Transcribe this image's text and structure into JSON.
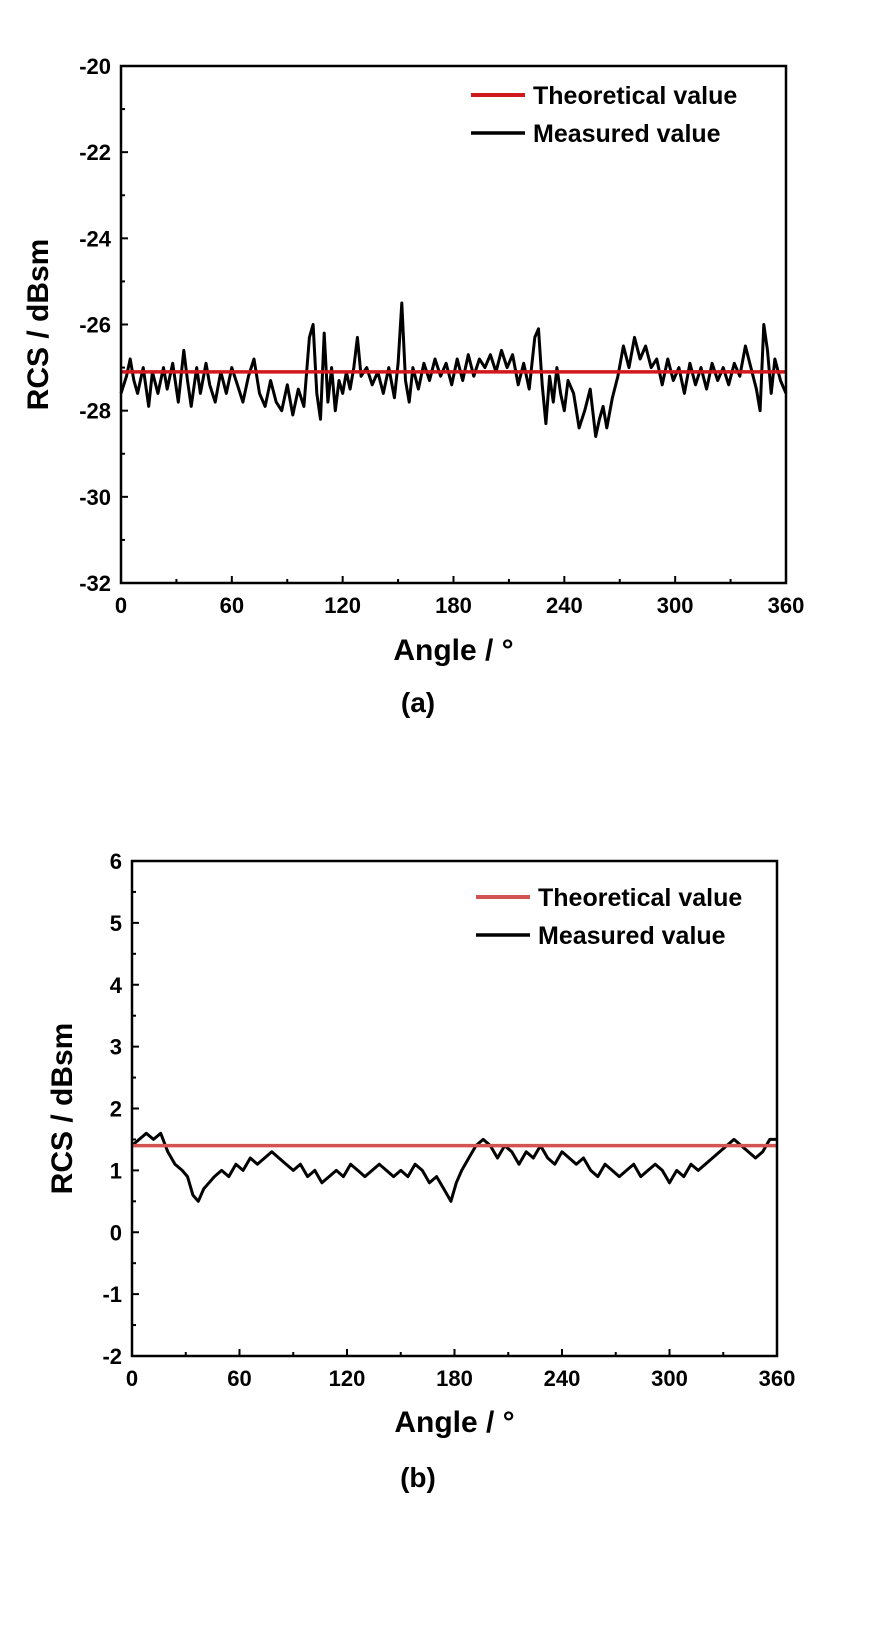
{
  "chart_data": [
    {
      "type": "line",
      "caption": "(a)",
      "xlabel": "Angle / °",
      "ylabel": "RCS / dBsm",
      "xlim": [
        0,
        360
      ],
      "ylim": [
        -32,
        -20
      ],
      "xticks": [
        0,
        60,
        120,
        180,
        240,
        300,
        360
      ],
      "xtick_labels": [
        "0",
        "60",
        "120",
        "180",
        "240",
        "300",
        "360"
      ],
      "yticks": [
        -32,
        -30,
        -28,
        -26,
        -24,
        -22,
        -20
      ],
      "ytick_labels": [
        "-32",
        "-30",
        "-28",
        "-26",
        "-24",
        "-22",
        "-20"
      ],
      "grid": false,
      "legend_position": "top-right",
      "series": [
        {
          "name": "Theoretical value",
          "color": "#d0191f",
          "x": [
            0,
            360
          ],
          "values": [
            -27.1,
            -27.1
          ]
        },
        {
          "name": "Measured value",
          "color": "#000000",
          "x": [
            0,
            3,
            5,
            7,
            9,
            12,
            15,
            17,
            20,
            23,
            25,
            28,
            31,
            34,
            36,
            38,
            41,
            43,
            46,
            48,
            51,
            54,
            57,
            60,
            63,
            66,
            69,
            72,
            75,
            78,
            81,
            84,
            87,
            90,
            93,
            96,
            99,
            102,
            104,
            106,
            108,
            110,
            112,
            114,
            116,
            118,
            120,
            122,
            124,
            126,
            128,
            130,
            133,
            136,
            139,
            142,
            145,
            148,
            150,
            152,
            154,
            156,
            158,
            161,
            164,
            167,
            170,
            173,
            176,
            179,
            182,
            185,
            188,
            191,
            194,
            197,
            200,
            203,
            206,
            209,
            212,
            215,
            218,
            221,
            224,
            226,
            228,
            230,
            232,
            234,
            236,
            238,
            240,
            242,
            245,
            248,
            251,
            254,
            257,
            259,
            261,
            263,
            266,
            269,
            272,
            275,
            278,
            281,
            284,
            287,
            290,
            293,
            296,
            299,
            302,
            305,
            308,
            311,
            314,
            317,
            320,
            323,
            326,
            329,
            332,
            335,
            338,
            341,
            344,
            346,
            348,
            350,
            352,
            354,
            357,
            360
          ],
          "values": [
            -27.6,
            -27.2,
            -26.8,
            -27.3,
            -27.6,
            -27.0,
            -27.9,
            -27.1,
            -27.6,
            -27.0,
            -27.5,
            -26.9,
            -27.8,
            -26.6,
            -27.3,
            -27.9,
            -27.0,
            -27.6,
            -26.9,
            -27.4,
            -27.8,
            -27.1,
            -27.6,
            -27.0,
            -27.4,
            -27.8,
            -27.2,
            -26.8,
            -27.6,
            -27.9,
            -27.3,
            -27.8,
            -28.0,
            -27.4,
            -28.1,
            -27.5,
            -27.9,
            -26.3,
            -26.0,
            -27.6,
            -28.2,
            -26.2,
            -27.8,
            -27.0,
            -28.0,
            -27.3,
            -27.6,
            -27.1,
            -27.5,
            -27.0,
            -26.3,
            -27.2,
            -27.0,
            -27.4,
            -27.1,
            -27.6,
            -27.0,
            -27.7,
            -26.9,
            -25.5,
            -27.3,
            -27.8,
            -27.0,
            -27.5,
            -26.9,
            -27.3,
            -26.8,
            -27.2,
            -26.9,
            -27.4,
            -26.8,
            -27.3,
            -26.7,
            -27.2,
            -26.8,
            -27.0,
            -26.7,
            -27.1,
            -26.6,
            -27.0,
            -26.7,
            -27.4,
            -26.9,
            -27.5,
            -26.3,
            -26.1,
            -27.4,
            -28.3,
            -27.2,
            -27.8,
            -27.0,
            -27.6,
            -28.0,
            -27.3,
            -27.6,
            -28.4,
            -28.0,
            -27.5,
            -28.6,
            -28.2,
            -27.9,
            -28.4,
            -27.7,
            -27.2,
            -26.5,
            -27.0,
            -26.3,
            -26.8,
            -26.5,
            -27.0,
            -26.8,
            -27.4,
            -26.8,
            -27.3,
            -27.0,
            -27.6,
            -26.9,
            -27.4,
            -27.0,
            -27.5,
            -26.9,
            -27.3,
            -27.0,
            -27.4,
            -26.9,
            -27.2,
            -26.5,
            -27.0,
            -27.5,
            -28.0,
            -26.0,
            -26.6,
            -27.6,
            -26.8,
            -27.3,
            -27.6
          ]
        }
      ]
    },
    {
      "type": "line",
      "caption": "(b)",
      "xlabel": "Angle / °",
      "ylabel": "RCS / dBsm",
      "xlim": [
        0,
        360
      ],
      "ylim": [
        -2,
        6
      ],
      "xticks": [
        0,
        60,
        120,
        180,
        240,
        300,
        360
      ],
      "xtick_labels": [
        "0",
        "60",
        "120",
        "180",
        "240",
        "300",
        "360"
      ],
      "yticks": [
        -2,
        -1,
        0,
        1,
        2,
        3,
        4,
        5,
        6
      ],
      "ytick_labels": [
        "-2",
        "-1",
        "0",
        "1",
        "2",
        "3",
        "4",
        "5",
        "6"
      ],
      "grid": false,
      "legend_position": "top-right",
      "series": [
        {
          "name": "Theoretical value",
          "color": "#d35353",
          "x": [
            0,
            360
          ],
          "values": [
            1.4,
            1.4
          ]
        },
        {
          "name": "Measured value",
          "color": "#000000",
          "x": [
            0,
            4,
            8,
            12,
            16,
            20,
            24,
            28,
            31,
            34,
            37,
            40,
            43,
            46,
            50,
            54,
            58,
            62,
            66,
            70,
            74,
            78,
            82,
            86,
            90,
            94,
            98,
            102,
            106,
            110,
            114,
            118,
            122,
            126,
            130,
            134,
            138,
            142,
            146,
            150,
            154,
            158,
            162,
            166,
            170,
            174,
            178,
            181,
            184,
            188,
            192,
            196,
            200,
            204,
            208,
            212,
            216,
            220,
            224,
            228,
            232,
            236,
            240,
            244,
            248,
            252,
            256,
            260,
            264,
            268,
            272,
            276,
            280,
            284,
            288,
            292,
            296,
            300,
            304,
            308,
            312,
            316,
            320,
            324,
            328,
            332,
            336,
            340,
            344,
            348,
            352,
            356,
            360
          ],
          "values": [
            1.4,
            1.5,
            1.6,
            1.5,
            1.6,
            1.3,
            1.1,
            1.0,
            0.9,
            0.6,
            0.5,
            0.7,
            0.8,
            0.9,
            1.0,
            0.9,
            1.1,
            1.0,
            1.2,
            1.1,
            1.2,
            1.3,
            1.2,
            1.1,
            1.0,
            1.1,
            0.9,
            1.0,
            0.8,
            0.9,
            1.0,
            0.9,
            1.1,
            1.0,
            0.9,
            1.0,
            1.1,
            1.0,
            0.9,
            1.0,
            0.9,
            1.1,
            1.0,
            0.8,
            0.9,
            0.7,
            0.5,
            0.8,
            1.0,
            1.2,
            1.4,
            1.5,
            1.4,
            1.2,
            1.4,
            1.3,
            1.1,
            1.3,
            1.2,
            1.4,
            1.2,
            1.1,
            1.3,
            1.2,
            1.1,
            1.2,
            1.0,
            0.9,
            1.1,
            1.0,
            0.9,
            1.0,
            1.1,
            0.9,
            1.0,
            1.1,
            1.0,
            0.8,
            1.0,
            0.9,
            1.1,
            1.0,
            1.1,
            1.2,
            1.3,
            1.4,
            1.5,
            1.4,
            1.3,
            1.2,
            1.3,
            1.5,
            1.5
          ]
        }
      ]
    }
  ]
}
